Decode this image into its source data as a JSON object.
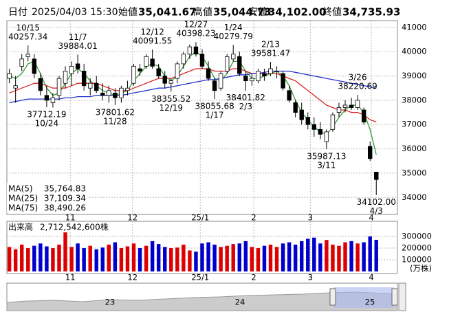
{
  "chart_data": {
    "type": "candlestick",
    "header": {
      "date_label": "日付",
      "datetime": "2025/04/03 15:30",
      "fields": [
        {
          "label": "始値",
          "value": {
            "value": 35041.67,
            "label": "35,041.67"
          },
          "color": "#000000"
        },
        {
          "label": "高値",
          "value": {
            "value": 35044.73,
            "label": "35,044.73"
          },
          "color": "#dd0000"
        },
        {
          "label": "安値",
          "value": {
            "value": 34102.0,
            "label": "34,102.00"
          },
          "color": "#008800"
        },
        {
          "label": "終値",
          "value": {
            "value": 34735.93,
            "label": "34,735.93"
          },
          "color": "#000000"
        }
      ]
    },
    "xlim": [
      -0.4,
      62.4
    ],
    "xticks": [
      {
        "value": 9.8,
        "label": "11"
      },
      {
        "value": 19.8,
        "label": "12"
      },
      {
        "value": 30.7,
        "label": "25/1"
      },
      {
        "value": 39.3,
        "label": "2"
      },
      {
        "value": 48.4,
        "label": "3"
      },
      {
        "value": 58.2,
        "label": "4"
      }
    ],
    "ylim": [
      33300,
      41280
    ],
    "yticks": [
      34000,
      35000,
      36000,
      37000,
      38000,
      39000,
      40000,
      41000
    ],
    "grid": true,
    "up_color": "#ffffff",
    "down_color": "#000000",
    "candles": [
      [
        38900,
        39300,
        38700,
        39100
      ],
      [
        38500,
        39000,
        37900,
        38600
      ],
      [
        39400,
        39900,
        39200,
        39700
      ],
      [
        39800,
        40257.34,
        39600,
        39900
      ],
      [
        39700,
        39900,
        38900,
        39100
      ],
      [
        38900,
        39100,
        38200,
        38400
      ],
      [
        38200,
        38600,
        37712.19,
        38000
      ],
      [
        37900,
        38300,
        37700,
        38100
      ],
      [
        38200,
        39000,
        38000,
        38900
      ],
      [
        38700,
        39400,
        38500,
        39200
      ],
      [
        39100,
        39600,
        38600,
        39400
      ],
      [
        39500,
        39884.01,
        39100,
        39300
      ],
      [
        39200,
        39500,
        38400,
        38600
      ],
      [
        38500,
        38900,
        38200,
        38700
      ],
      [
        38700,
        39000,
        38300,
        38400
      ],
      [
        38300,
        38700,
        38000,
        38200
      ],
      [
        38200,
        38600,
        37900,
        38400
      ],
      [
        38300,
        38500,
        37801.62,
        38100
      ],
      [
        38100,
        38600,
        37900,
        38500
      ],
      [
        38400,
        38800,
        38200,
        38500
      ],
      [
        38700,
        39500,
        38600,
        39400
      ],
      [
        39300,
        39500,
        39000,
        39200
      ],
      [
        39400,
        39900,
        39300,
        39800
      ],
      [
        39700,
        40091.55,
        39300,
        39400
      ],
      [
        39300,
        39500,
        38900,
        39000
      ],
      [
        39000,
        39200,
        38500,
        38700
      ],
      [
        38700,
        38900,
        38355.52,
        38800
      ],
      [
        38900,
        39600,
        38700,
        39500
      ],
      [
        39500,
        40000,
        39300,
        39900
      ],
      [
        39900,
        40300,
        39700,
        40200
      ],
      [
        40200,
        40398.23,
        39800,
        39900
      ],
      [
        39900,
        40100,
        39300,
        39400
      ],
      [
        39300,
        39600,
        38800,
        38900
      ],
      [
        38800,
        38900,
        38055.68,
        38400
      ],
      [
        38500,
        39200,
        38400,
        39100
      ],
      [
        39200,
        39900,
        39100,
        39800
      ],
      [
        39700,
        40279.79,
        39600,
        39900
      ],
      [
        39800,
        40000,
        39000,
        39100
      ],
      [
        39000,
        39200,
        38401.82,
        38800
      ],
      [
        38800,
        39100,
        38600,
        38900
      ],
      [
        38800,
        39300,
        38700,
        39200
      ],
      [
        39100,
        39300,
        38800,
        39000
      ],
      [
        39100,
        39581.47,
        39000,
        39300
      ],
      [
        39200,
        39400,
        38900,
        39200
      ],
      [
        39100,
        39200,
        38400,
        38500
      ],
      [
        38400,
        38600,
        37900,
        38000
      ],
      [
        37900,
        38000,
        37300,
        37500
      ],
      [
        37600,
        37900,
        37000,
        37200
      ],
      [
        37300,
        37500,
        36800,
        37000
      ],
      [
        37000,
        37300,
        36500,
        36800
      ],
      [
        36800,
        37100,
        36400,
        36600
      ],
      [
        36300,
        36800,
        35987.13,
        36700
      ],
      [
        36800,
        37500,
        36700,
        37400
      ],
      [
        37500,
        37900,
        37300,
        37700
      ],
      [
        37700,
        38000,
        37500,
        37800
      ],
      [
        37800,
        38100,
        37600,
        37700
      ],
      [
        37700,
        38220.69,
        37600,
        38000
      ],
      [
        37600,
        37700,
        37000,
        37100
      ],
      [
        36100,
        36300,
        35500,
        35600
      ],
      [
        35041.67,
        35044.73,
        34102,
        34735.93
      ]
    ],
    "annotations": [
      {
        "date": "10/15",
        "price": 40257.34
      },
      {
        "date": "10/24",
        "price": 37712.19
      },
      {
        "date": "11/7",
        "price": 39884.01
      },
      {
        "date": "11/28",
        "price": 37801.62
      },
      {
        "date": "12/12",
        "price": 40091.55
      },
      {
        "date": "12/19",
        "price": 38355.52
      },
      {
        "date": "12/27",
        "price": 40398.23
      },
      {
        "date": "1/17",
        "price": 38055.68
      },
      {
        "date": "1/24",
        "price": 40279.79
      },
      {
        "date": "2/3",
        "price": 38401.82
      },
      {
        "date": "2/13",
        "price": 39581.47
      },
      {
        "date": "3/11",
        "price": 35987.13
      },
      {
        "date": "3/26",
        "price": 38220.69
      },
      {
        "date": "4/3",
        "price": {
          "value": 34102,
          "label": "34102.00"
        }
      }
    ],
    "moving_averages": [
      {
        "name": "MA(5)",
        "color": "#339933",
        "last": {
          "value": 35764.83,
          "label": "35,764.83"
        },
        "values": [
          39000,
          38900,
          39100,
          39500,
          39600,
          39100,
          38500,
          38200,
          38300,
          38700,
          39100,
          39300,
          39100,
          38800,
          38600,
          38400,
          38300,
          38200,
          38300,
          38400,
          38800,
          39100,
          39400,
          39500,
          39400,
          39000,
          38800,
          39000,
          39400,
          39800,
          40000,
          39800,
          39400,
          38900,
          38800,
          39100,
          39600,
          39600,
          39200,
          38900,
          38900,
          39000,
          39100,
          39200,
          39000,
          38600,
          38000,
          37500,
          37200,
          36900,
          36700,
          36600,
          36900,
          37300,
          37600,
          37800,
          37800,
          37500,
          36800,
          35764.83
        ]
      },
      {
        "name": "MA(25)",
        "color": "#dd2222",
        "last": {
          "value": 37109.34,
          "label": "37,109.34"
        },
        "values": [
          38300,
          38400,
          38500,
          38600,
          38700,
          38700,
          38600,
          38500,
          38500,
          38500,
          38600,
          38700,
          38700,
          38700,
          38700,
          38600,
          38500,
          38400,
          38400,
          38400,
          38500,
          38600,
          38700,
          38800,
          38900,
          38900,
          38900,
          39000,
          39100,
          39200,
          39300,
          39300,
          39300,
          39200,
          39200,
          39200,
          39300,
          39300,
          39200,
          39100,
          39100,
          39100,
          39100,
          39100,
          39000,
          38900,
          38800,
          38600,
          38400,
          38200,
          38000,
          37800,
          37700,
          37600,
          37600,
          37500,
          37500,
          37400,
          37200,
          37109.34
        ]
      },
      {
        "name": "MA(75)",
        "color": "#2233cc",
        "last": {
          "value": 38490.26,
          "label": "38,490.26"
        },
        "values": [
          37900,
          37950,
          38000,
          38050,
          38050,
          38050,
          38050,
          38050,
          38050,
          38100,
          38100,
          38150,
          38150,
          38150,
          38200,
          38200,
          38200,
          38200,
          38200,
          38250,
          38300,
          38350,
          38400,
          38450,
          38500,
          38500,
          38550,
          38600,
          38650,
          38700,
          38750,
          38800,
          38850,
          38850,
          38900,
          38950,
          39000,
          39050,
          39050,
          39100,
          39100,
          39150,
          39200,
          39200,
          39200,
          39200,
          39150,
          39100,
          39050,
          39000,
          38950,
          38900,
          38850,
          38800,
          38750,
          38700,
          38650,
          38600,
          38550,
          38490.26
        ]
      }
    ],
    "volume": {
      "title": "出来高",
      "total": {
        "value": 2712542600,
        "label": "2,712,542,600株"
      },
      "unit": "(万株)",
      "ylim": [
        0,
        430000
      ],
      "yticks": [
        100000,
        200000,
        300000
      ],
      "up_color": "#dd0000",
      "down_color": "#0000cc",
      "values": [
        210000,
        190000,
        230000,
        200000,
        220000,
        240000,
        215000,
        200000,
        230000,
        335000,
        210000,
        240000,
        200000,
        220000,
        190000,
        205000,
        230000,
        250000,
        200000,
        215000,
        240000,
        200000,
        220000,
        260000,
        235000,
        210000,
        200000,
        205000,
        230000,
        180000,
        170000,
        240000,
        250000,
        230000,
        210000,
        220000,
        235000,
        240000,
        260000,
        210000,
        200000,
        220000,
        230000,
        210000,
        240000,
        250000,
        230000,
        260000,
        280000,
        290000,
        240000,
        270000,
        230000,
        220000,
        250000,
        260000,
        240000,
        250000,
        300000,
        271254.26
      ]
    },
    "navigator_labels": [
      "23",
      "24",
      "25"
    ]
  }
}
